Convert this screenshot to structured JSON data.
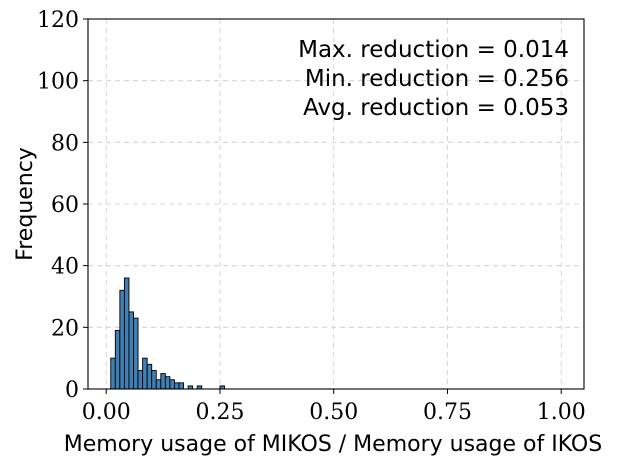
{
  "chart_data": {
    "type": "bar",
    "subtype": "histogram",
    "xlabel": "Memory usage of MIKOS / Memory usage of IKOS",
    "ylabel": "Frequency",
    "xlim": [
      -0.04,
      1.05
    ],
    "ylim": [
      0,
      120
    ],
    "xticks": [
      0.0,
      0.25,
      0.5,
      0.75,
      1.0
    ],
    "xtick_labels": [
      "0.00",
      "0.25",
      "0.50",
      "0.75",
      "1.00"
    ],
    "yticks": [
      0,
      20,
      40,
      60,
      80,
      100,
      120
    ],
    "ytick_labels": [
      "0",
      "20",
      "40",
      "60",
      "80",
      "100",
      "120"
    ],
    "grid": true,
    "bar_color": "#3f7fb3",
    "bin_width": 0.01,
    "bin_starts": [
      0.01,
      0.02,
      0.03,
      0.04,
      0.05,
      0.06,
      0.07,
      0.08,
      0.09,
      0.1,
      0.11,
      0.12,
      0.13,
      0.14,
      0.15,
      0.16,
      0.17,
      0.18,
      0.19,
      0.2,
      0.21,
      0.22,
      0.23,
      0.24,
      0.25,
      0.26
    ],
    "values": [
      10,
      19,
      32,
      36,
      25,
      23,
      6,
      10,
      8,
      6,
      3,
      5,
      4,
      3,
      2,
      2,
      0,
      1,
      0,
      1,
      0,
      0,
      0,
      0,
      1,
      0
    ],
    "annotations": [
      "Max. reduction = 0.014",
      "Min. reduction = 0.256",
      "Avg. reduction = 0.053"
    ]
  }
}
